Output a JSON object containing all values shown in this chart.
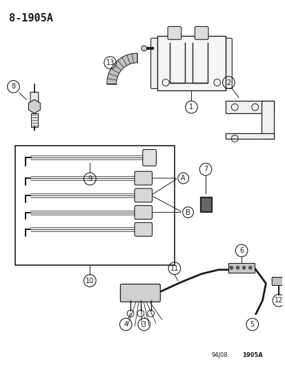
{
  "title": "8−1905A",
  "bg_color": "#ffffff",
  "line_color": "#1a1a1a",
  "footer_left": "94J08",
  "footer_right": "1905A",
  "figsize": [
    4.14,
    5.33
  ],
  "dpi": 100
}
